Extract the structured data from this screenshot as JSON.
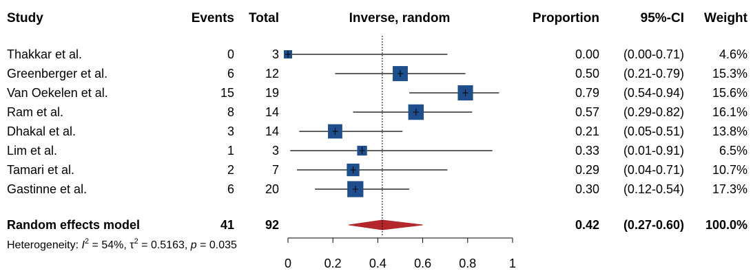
{
  "chart_data": {
    "type": "forest",
    "headers": {
      "study": "Study",
      "events": "Events",
      "total": "Total",
      "method": "Inverse, random",
      "proportion": "Proportion",
      "ci": "95%-CI",
      "weight": "Weight"
    },
    "studies": [
      {
        "name": "Thakkar et al.",
        "events": "0",
        "total": "3",
        "proportion": 0.0,
        "lower": 0.0,
        "upper": 0.71,
        "proportion_text": "0.00",
        "ci_text": "(0.00-0.71)",
        "weight_text": "4.6%",
        "weight": 4.6
      },
      {
        "name": "Greenberger et al.",
        "events": "6",
        "total": "12",
        "proportion": 0.5,
        "lower": 0.21,
        "upper": 0.79,
        "proportion_text": "0.50",
        "ci_text": "(0.21-0.79)",
        "weight_text": "15.3%",
        "weight": 15.3
      },
      {
        "name": "Van Oekelen et al.",
        "events": "15",
        "total": "19",
        "proportion": 0.79,
        "lower": 0.54,
        "upper": 0.94,
        "proportion_text": "0.79",
        "ci_text": "(0.54-0.94)",
        "weight_text": "15.6%",
        "weight": 15.6
      },
      {
        "name": "Ram et al.",
        "events": "8",
        "total": "14",
        "proportion": 0.57,
        "lower": 0.29,
        "upper": 0.82,
        "proportion_text": "0.57",
        "ci_text": "(0.29-0.82)",
        "weight_text": "16.1%",
        "weight": 16.1
      },
      {
        "name": "Dhakal et al.",
        "events": "3",
        "total": "14",
        "proportion": 0.21,
        "lower": 0.05,
        "upper": 0.51,
        "proportion_text": "0.21",
        "ci_text": "(0.05-0.51)",
        "weight_text": "13.8%",
        "weight": 13.8
      },
      {
        "name": "Lim et al.",
        "events": "1",
        "total": "3",
        "proportion": 0.33,
        "lower": 0.01,
        "upper": 0.91,
        "proportion_text": "0.33",
        "ci_text": "(0.01-0.91)",
        "weight_text": "6.5%",
        "weight": 6.5
      },
      {
        "name": "Tamari et al.",
        "events": "2",
        "total": "7",
        "proportion": 0.29,
        "lower": 0.04,
        "upper": 0.71,
        "proportion_text": "0.29",
        "ci_text": "(0.04-0.71)",
        "weight_text": "10.7%",
        "weight": 10.7
      },
      {
        "name": "Gastinne et al.",
        "events": "6",
        "total": "20",
        "proportion": 0.3,
        "lower": 0.12,
        "upper": 0.54,
        "proportion_text": "0.30",
        "ci_text": "(0.12-0.54)",
        "weight_text": "17.3%",
        "weight": 17.3
      }
    ],
    "summary": {
      "name": "Random effects model",
      "events": "41",
      "total": "92",
      "proportion": 0.42,
      "lower": 0.27,
      "upper": 0.6,
      "proportion_text": "0.42",
      "ci_text": "(0.27-0.60)",
      "weight_text": "100.0%"
    },
    "heterogeneity": {
      "prefix": "Heterogeneity: ",
      "i2_symbol": "I",
      "i2_value": " = 54%, ",
      "tau_symbol": "τ",
      "tau_value": " = 0.5163, ",
      "p_symbol": "p",
      "p_value": " = 0.035"
    },
    "x_axis": {
      "ticks": [
        0,
        0.2,
        0.4,
        0.6,
        0.8,
        1
      ],
      "tick_labels": [
        "0",
        "0.2",
        "0.4",
        "0.6",
        "0.8",
        "1"
      ],
      "xlim": [
        0,
        1
      ]
    },
    "reference_line": 0.42,
    "colors": {
      "square": "#1f4e8c",
      "diamond": "#b3262b",
      "line": "#000000"
    }
  }
}
